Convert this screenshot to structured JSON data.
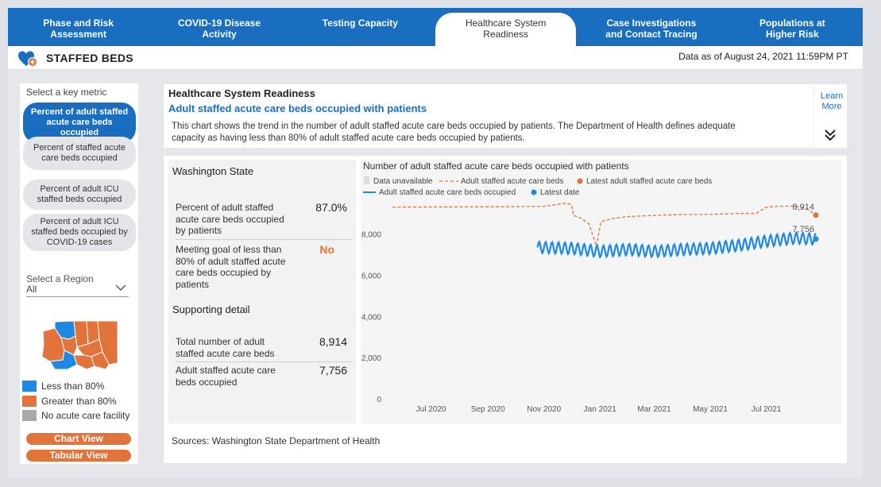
{
  "nav": {
    "tabs": [
      {
        "label": "Phase and Risk\nAssessment"
      },
      {
        "label": "COVID-19 Disease\nActivity"
      },
      {
        "label": "Testing Capacity"
      },
      {
        "label": "Healthcare System\nReadiness"
      },
      {
        "label": "Case Investigations\nand Contact Tracing"
      },
      {
        "label": "Populations at\nHigher Risk"
      }
    ],
    "active_index": 3
  },
  "header": {
    "title": "STAFFED BEDS",
    "as_of": "Data as of August 24, 2021 11:59PM PT",
    "logo_icon": "heart-plus-icon"
  },
  "left": {
    "select_metric_label": "Select a key metric",
    "metrics": [
      {
        "label": "Percent of adult staffed acute care beds occupied",
        "selected": true
      },
      {
        "label": "Percent of staffed acute care beds occupied",
        "selected": false
      },
      {
        "label": "Percent of adult ICU staffed beds occupied",
        "selected": false
      },
      {
        "label": "Percent of adult ICU staffed beds occupied by COVID-19 cases",
        "selected": false
      }
    ],
    "region_label": "Select a Region",
    "region_value": "All",
    "legend": [
      {
        "label": "Less than 80%",
        "color": "#1e88e5"
      },
      {
        "label": "Greater than 80%",
        "color": "#e2733a"
      },
      {
        "label": "No acute care facility",
        "color": "#a9a9a9"
      }
    ],
    "chart_view_label": "Chart View",
    "tabular_view_label": "Tabular View"
  },
  "info": {
    "heading": "Healthcare System Readiness",
    "subheading": "Adult staffed acute care beds occupied with patients",
    "description": "This chart shows the trend in the number of adult staffed acute care beds occupied by patients. The Department of Health defines adequate capacity as having less than 80% of adult staffed acute care beds occupied by patients.",
    "learn_more": "Learn More"
  },
  "stats": {
    "region_title": "Washington State",
    "percent_label": "Percent of adult staffed acute care beds occupied by patients",
    "percent_value": "87.0%",
    "goal_label": "Meeting goal of less than 80% of adult staffed acute care beds occupied by patients",
    "goal_value": "No",
    "goal_color": "#e2733a",
    "supporting_title": "Supporting detail",
    "total_label": "Total number of adult staffed acute care beds",
    "total_value": "8,914",
    "occupied_label": "Adult staffed acute care beds occupied",
    "occupied_value": "7,756"
  },
  "sources": "Sources: Washington State Department of Health",
  "chart_data": {
    "type": "line",
    "title": "Number of adult staffed acute care beds occupied with patients",
    "legend": [
      {
        "name": "Data unavailable",
        "color": "#dddddd",
        "style": "box"
      },
      {
        "name": "Adult staffed acute care beds",
        "color": "#e2733a",
        "style": "dashed"
      },
      {
        "name": "Latest adult staffed acute care beds",
        "color": "#e2733a",
        "style": "dot"
      },
      {
        "name": "Adult staffed acute care beds occupied",
        "color": "#1e88e5",
        "style": "solid"
      },
      {
        "name": "Latest date",
        "color": "#1e88e5",
        "style": "dot"
      }
    ],
    "x_ticks": [
      "Jul 2020",
      "Sep 2020",
      "Nov 2020",
      "Jan 2021",
      "Mar 2021",
      "May 2021",
      "Jul 2021"
    ],
    "x_range": [
      "2020-05-20",
      "2021-08-24"
    ],
    "y_ticks": [
      "0",
      "2,000",
      "4,000",
      "6,000",
      "8,000"
    ],
    "ylim": [
      0,
      9600
    ],
    "series": [
      {
        "name": "Adult staffed acute care beds",
        "color": "#e2733a",
        "dashed": true,
        "points": [
          [
            "2020-05-20",
            9300
          ],
          [
            "2020-07-01",
            9310
          ],
          [
            "2020-09-01",
            9320
          ],
          [
            "2020-11-01",
            9340
          ],
          [
            "2020-11-25",
            9500
          ],
          [
            "2020-12-01",
            9420
          ],
          [
            "2020-12-03",
            8900
          ],
          [
            "2020-12-10",
            8800
          ],
          [
            "2020-12-20",
            8500
          ],
          [
            "2020-12-28",
            7400
          ],
          [
            "2021-01-02",
            8600
          ],
          [
            "2021-01-15",
            8750
          ],
          [
            "2021-02-01",
            8850
          ],
          [
            "2021-03-01",
            8900
          ],
          [
            "2021-04-01",
            8950
          ],
          [
            "2021-05-01",
            8950
          ],
          [
            "2021-06-01",
            9000
          ],
          [
            "2021-06-20",
            9000
          ],
          [
            "2021-07-01",
            9300
          ],
          [
            "2021-07-15",
            9350
          ],
          [
            "2021-08-01",
            9350
          ],
          [
            "2021-08-15",
            9200
          ],
          [
            "2021-08-24",
            8914
          ]
        ],
        "latest_label": "8,914"
      },
      {
        "name": "Adult staffed acute care beds occupied",
        "color": "#1e88e5",
        "dashed": false,
        "start": "2020-10-25",
        "end": "2021-08-24",
        "base_points": [
          [
            "2020-10-25",
            7350
          ],
          [
            "2020-12-01",
            7300
          ],
          [
            "2021-01-01",
            7150
          ],
          [
            "2021-02-01",
            7250
          ],
          [
            "2021-03-01",
            7150
          ],
          [
            "2021-04-01",
            7250
          ],
          [
            "2021-05-01",
            7300
          ],
          [
            "2021-06-01",
            7450
          ],
          [
            "2021-07-01",
            7650
          ],
          [
            "2021-08-01",
            7800
          ],
          [
            "2021-08-24",
            7756
          ]
        ],
        "weekly_amplitude": 280,
        "latest_label": "7,756"
      }
    ]
  }
}
